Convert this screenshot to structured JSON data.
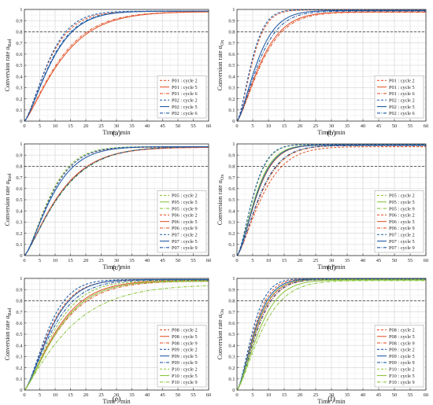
{
  "chart_data": [
    {
      "type": "line",
      "caption": "(a)",
      "xlabel": "Time / min",
      "ylabel_main": "Conversion rate α",
      "ylabel_sub": "Red",
      "xlim": [
        0,
        60
      ],
      "ylim": [
        0,
        1
      ],
      "grid": true,
      "reference_line_y": 0.8,
      "legend_position": "bottom-right",
      "series": [
        {
          "name": "P01 : cycle 2",
          "color": "#e4572e",
          "dash": "dash",
          "t50": 7.3,
          "shape": 1.35,
          "max": 0.982
        },
        {
          "name": "P01 : cycle 5",
          "color": "#e4572e",
          "dash": "solid",
          "t50": 10.4,
          "shape": 1.25,
          "max": 0.98
        },
        {
          "name": "P01 : cycle 6",
          "color": "#e4572e",
          "dash": "dashdot",
          "t50": 10.0,
          "shape": 1.25,
          "max": 0.98
        },
        {
          "name": "P02 : cycle 2",
          "color": "#1f5aa6",
          "dash": "dash",
          "t50": 7.2,
          "shape": 1.4,
          "max": 0.985
        },
        {
          "name": "P02 : cycle 5",
          "color": "#1f5aa6",
          "dash": "solid",
          "t50": 8.1,
          "shape": 1.35,
          "max": 0.985
        },
        {
          "name": "P02 : cycle 6",
          "color": "#1f5aa6",
          "dash": "dashdot",
          "t50": 7.9,
          "shape": 1.35,
          "max": 0.985
        }
      ]
    },
    {
      "type": "line",
      "caption": "(b)",
      "xlabel": "Time / min",
      "ylabel_main": "Conversion rate α",
      "ylabel_sub": "Ox",
      "xlim": [
        0,
        60
      ],
      "ylim": [
        0,
        1
      ],
      "grid": true,
      "reference_line_y": 0.8,
      "legend_position": "bottom-right",
      "series": [
        {
          "name": "P01 : cycle 2",
          "color": "#e4572e",
          "dash": "dash",
          "t50": 4.6,
          "shape": 1.5,
          "max": 0.995
        },
        {
          "name": "P01 : cycle 5",
          "color": "#e4572e",
          "dash": "solid",
          "t50": 7.0,
          "shape": 1.35,
          "max": 0.978
        },
        {
          "name": "P01 : cycle 6",
          "color": "#e4572e",
          "dash": "dashdot",
          "t50": 7.3,
          "shape": 1.35,
          "max": 0.975
        },
        {
          "name": "P02 : cycle 2",
          "color": "#1f5aa6",
          "dash": "dash",
          "t50": 4.4,
          "shape": 1.5,
          "max": 0.997
        },
        {
          "name": "P02 : cycle 5",
          "color": "#1f5aa6",
          "dash": "solid",
          "t50": 6.0,
          "shape": 1.4,
          "max": 0.99
        },
        {
          "name": "P02 : cycle 6",
          "color": "#1f5aa6",
          "dash": "dashdot",
          "t50": 6.5,
          "shape": 1.4,
          "max": 0.985
        }
      ]
    },
    {
      "type": "line",
      "caption": "(c)",
      "xlabel": "Time / min",
      "ylabel_main": "Conversion rate α",
      "ylabel_sub": "Red",
      "xlim": [
        0,
        60
      ],
      "ylim": [
        0,
        1
      ],
      "grid": true,
      "reference_line_y": 0.8,
      "legend_position": "bottom-right",
      "series": [
        {
          "name": "P05 : cycle 2",
          "color": "#8cc63f",
          "dash": "dash",
          "t50": 7.6,
          "shape": 1.4,
          "max": 0.975
        },
        {
          "name": "P05 : cycle 5",
          "color": "#8cc63f",
          "dash": "solid",
          "t50": 10.0,
          "shape": 1.25,
          "max": 0.975
        },
        {
          "name": "P05 : cycle 9",
          "color": "#8cc63f",
          "dash": "dashdot",
          "t50": 10.2,
          "shape": 1.25,
          "max": 0.975
        },
        {
          "name": "P06 : cycle 2",
          "color": "#e4572e",
          "dash": "dash",
          "t50": 7.8,
          "shape": 1.4,
          "max": 0.97
        },
        {
          "name": "P06 : cycle 5",
          "color": "#e4572e",
          "dash": "solid",
          "t50": 9.8,
          "shape": 1.25,
          "max": 0.97
        },
        {
          "name": "P06 : cycle 9",
          "color": "#e4572e",
          "dash": "dashdot",
          "t50": 9.9,
          "shape": 1.25,
          "max": 0.97
        },
        {
          "name": "P07 : cycle 2",
          "color": "#1f5aa6",
          "dash": "dash",
          "t50": 7.9,
          "shape": 1.4,
          "max": 0.975
        },
        {
          "name": "P07 : cycle 5",
          "color": "#1f5aa6",
          "dash": "solid",
          "t50": 8.2,
          "shape": 1.35,
          "max": 0.975
        },
        {
          "name": "P07 : cycle 9",
          "color": "#1f5aa6",
          "dash": "dashdot",
          "t50": 10.1,
          "shape": 1.25,
          "max": 0.975
        }
      ]
    },
    {
      "type": "line",
      "caption": "(d)",
      "xlabel": "Time / min",
      "ylabel_main": "Conversion rate α",
      "ylabel_sub": "Ox",
      "xlim": [
        0,
        60
      ],
      "ylim": [
        0,
        1
      ],
      "grid": true,
      "reference_line_y": 0.8,
      "legend_position": "bottom-right",
      "series": [
        {
          "name": "P05 : cycle 2",
          "color": "#8cc63f",
          "dash": "dash",
          "t50": 4.9,
          "shape": 1.5,
          "max": 0.995
        },
        {
          "name": "P05 : cycle 5",
          "color": "#8cc63f",
          "dash": "solid",
          "t50": 5.5,
          "shape": 1.45,
          "max": 0.99
        },
        {
          "name": "P05 : cycle 9",
          "color": "#8cc63f",
          "dash": "dashdot",
          "t50": 6.7,
          "shape": 1.4,
          "max": 0.985
        },
        {
          "name": "P06 : cycle 2",
          "color": "#e4572e",
          "dash": "dash",
          "t50": 7.3,
          "shape": 1.35,
          "max": 0.975
        },
        {
          "name": "P06 : cycle 5",
          "color": "#e4572e",
          "dash": "solid",
          "t50": 5.8,
          "shape": 1.45,
          "max": 0.99
        },
        {
          "name": "P06 : cycle 9",
          "color": "#e4572e",
          "dash": "dashdot",
          "t50": 6.8,
          "shape": 1.4,
          "max": 0.985
        },
        {
          "name": "P07 : cycle 2",
          "color": "#1f5aa6",
          "dash": "dash",
          "t50": 4.8,
          "shape": 1.5,
          "max": 0.995
        },
        {
          "name": "P07 : cycle 5",
          "color": "#1f5aa6",
          "dash": "solid",
          "t50": 5.7,
          "shape": 1.45,
          "max": 0.99
        },
        {
          "name": "P07 : cycle 9",
          "color": "#1f5aa6",
          "dash": "dashdot",
          "t50": 6.6,
          "shape": 1.4,
          "max": 0.985
        }
      ]
    },
    {
      "type": "line",
      "caption": "(e)",
      "xlabel": "Time / min",
      "ylabel_main": "Conversion rate α",
      "ylabel_sub": "Red",
      "xlim": [
        0,
        60
      ],
      "ylim": [
        0,
        1
      ],
      "grid": true,
      "reference_line_y": 0.8,
      "legend_position": "bottom-right",
      "series": [
        {
          "name": "P08 : cycle 2",
          "color": "#e4572e",
          "dash": "dash",
          "t50": 7.5,
          "shape": 1.4,
          "max": 0.985
        },
        {
          "name": "P08 : cycle 5",
          "color": "#e4572e",
          "dash": "solid",
          "t50": 9.5,
          "shape": 1.3,
          "max": 0.98
        },
        {
          "name": "P08 : cycle 9",
          "color": "#e4572e",
          "dash": "dashdot",
          "t50": 9.9,
          "shape": 1.25,
          "max": 0.975
        },
        {
          "name": "P09 : cycle 2",
          "color": "#1f5aa6",
          "dash": "dash",
          "t50": 7.1,
          "shape": 1.45,
          "max": 0.99
        },
        {
          "name": "P09 : cycle 5",
          "color": "#1f5aa6",
          "dash": "solid",
          "t50": 7.8,
          "shape": 1.4,
          "max": 0.99
        },
        {
          "name": "P09 : cycle 9",
          "color": "#1f5aa6",
          "dash": "dashdot",
          "t50": 8.3,
          "shape": 1.35,
          "max": 0.985
        },
        {
          "name": "P10 : cycle 2",
          "color": "#8cc63f",
          "dash": "dash",
          "t50": 8.9,
          "shape": 1.35,
          "max": 0.98
        },
        {
          "name": "P10 : cycle 5",
          "color": "#8cc63f",
          "dash": "solid",
          "t50": 9.8,
          "shape": 1.3,
          "max": 0.975
        },
        {
          "name": "P10 : cycle 9",
          "color": "#8cc63f",
          "dash": "dashdot",
          "t50": 11.8,
          "shape": 1.15,
          "max": 0.945
        }
      ]
    },
    {
      "type": "line",
      "caption": "(f)",
      "xlabel": "Time / min",
      "ylabel_main": "Conversion rate α",
      "ylabel_sub": "Ox",
      "xlim": [
        0,
        60
      ],
      "ylim": [
        0,
        1
      ],
      "grid": true,
      "reference_line_y": 0.8,
      "legend_position": "bottom-right",
      "series": [
        {
          "name": "P08 : cycle 2",
          "color": "#e4572e",
          "dash": "dash",
          "t50": 5.1,
          "shape": 1.5,
          "max": 0.995
        },
        {
          "name": "P08 : cycle 5",
          "color": "#e4572e",
          "dash": "solid",
          "t50": 5.6,
          "shape": 1.45,
          "max": 0.99
        },
        {
          "name": "P08 : cycle 9",
          "color": "#e4572e",
          "dash": "dashdot",
          "t50": 6.0,
          "shape": 1.45,
          "max": 0.99
        },
        {
          "name": "P09 : cycle 2",
          "color": "#1f5aa6",
          "dash": "dash",
          "t50": 4.7,
          "shape": 1.5,
          "max": 0.997
        },
        {
          "name": "P09 : cycle 5",
          "color": "#1f5aa6",
          "dash": "solid",
          "t50": 5.3,
          "shape": 1.45,
          "max": 0.995
        },
        {
          "name": "P09 : cycle 9",
          "color": "#1f5aa6",
          "dash": "dashdot",
          "t50": 5.9,
          "shape": 1.45,
          "max": 0.99
        },
        {
          "name": "P10 : cycle 2",
          "color": "#8cc63f",
          "dash": "dash",
          "t50": 5.5,
          "shape": 1.45,
          "max": 0.99
        },
        {
          "name": "P10 : cycle 5",
          "color": "#8cc63f",
          "dash": "solid",
          "t50": 6.5,
          "shape": 1.4,
          "max": 0.985
        },
        {
          "name": "P10 : cycle 9",
          "color": "#8cc63f",
          "dash": "dashdot",
          "t50": 7.2,
          "shape": 1.35,
          "max": 0.98
        }
      ]
    }
  ]
}
